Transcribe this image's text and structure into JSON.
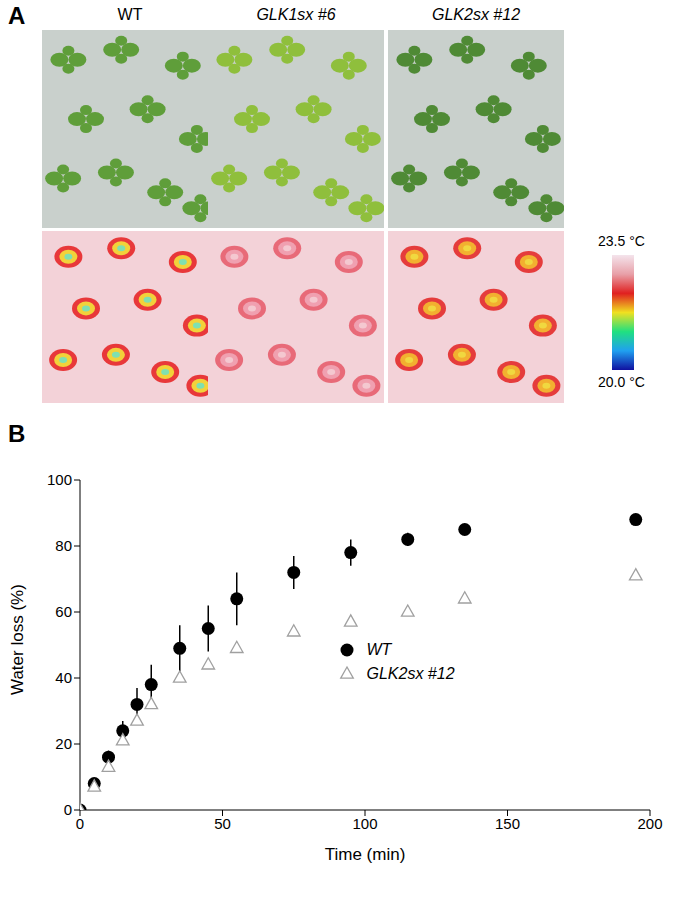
{
  "panel_labels": [
    "A",
    "B"
  ],
  "images": {
    "columns": [
      "WT",
      "GLK1sx #6",
      "GLK2sx #12"
    ],
    "colorbar": {
      "range": [
        20.0,
        23.5
      ],
      "ticks": [
        {
          "value": 23.5,
          "label": "23.5 °C"
        },
        {
          "value": 20.0,
          "label": "20.0 °C"
        }
      ]
    }
  },
  "chart_data": {
    "type": "scatter",
    "x_label": "Time (min)",
    "y_label": "Water loss (%)",
    "xlim": [
      0,
      200
    ],
    "xticks": [
      0,
      50,
      100,
      150,
      200
    ],
    "ylim": [
      0,
      100
    ],
    "yticks": [
      0,
      20,
      40,
      60,
      80,
      100
    ],
    "grid": false,
    "legend": "center",
    "series": [
      {
        "name": "WT",
        "color": "#000000",
        "marker": "circle",
        "x": [
          0,
          5,
          10,
          15,
          20,
          25,
          35,
          45,
          55,
          75,
          95,
          115,
          135,
          195
        ],
        "values": [
          0,
          8,
          16,
          24,
          32,
          38,
          49,
          55,
          64,
          72,
          78,
          82,
          85,
          88
        ],
        "errors": [
          0,
          1,
          2,
          3,
          5,
          6,
          7,
          7,
          8,
          5,
          4,
          2,
          1,
          1
        ]
      },
      {
        "name": "GLK2sx #12",
        "color": "#a0a0a0",
        "marker": "open-triangle",
        "x": [
          0,
          5,
          10,
          15,
          20,
          25,
          35,
          45,
          55,
          75,
          95,
          115,
          135,
          195
        ],
        "values": [
          0,
          7,
          13,
          21,
          27,
          32,
          40,
          44,
          49,
          54,
          57,
          60,
          64,
          71
        ]
      }
    ]
  }
}
